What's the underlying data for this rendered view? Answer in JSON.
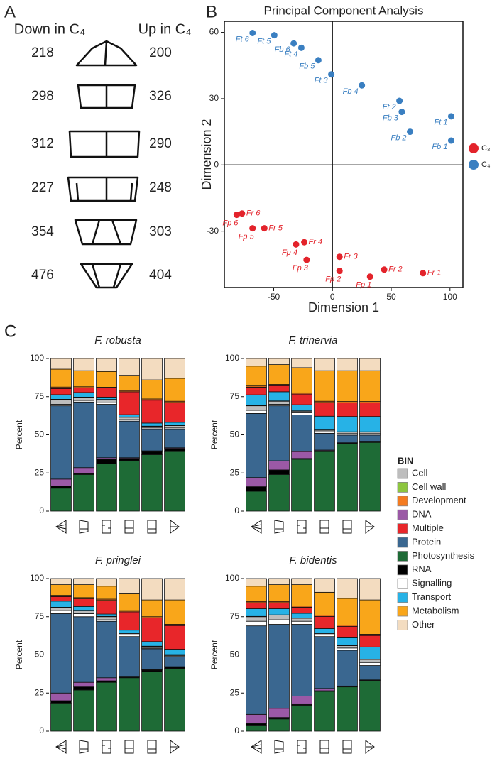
{
  "panel_labels": [
    "A",
    "B",
    "C"
  ],
  "panel_a": {
    "down_title": "Down in C₄",
    "up_title": "Up in C₄",
    "rows": [
      {
        "down": 218,
        "up": 200
      },
      {
        "down": 298,
        "up": 326
      },
      {
        "down": 312,
        "up": 290
      },
      {
        "down": 227,
        "up": 248
      },
      {
        "down": 354,
        "up": 303
      },
      {
        "down": 476,
        "up": 404
      }
    ]
  },
  "chart_data": [
    {
      "type": "scatter",
      "title": "Principal Component Analysis",
      "xlabel": "Dimension 1",
      "ylabel": "Dimension 2",
      "xlim": [
        -92,
        111
      ],
      "ylim": [
        -55.5,
        65
      ],
      "xticks": [
        -50,
        0,
        50,
        100
      ],
      "yticks": [
        -30,
        0,
        30,
        60
      ],
      "zero_lines": true,
      "legend": "right",
      "series": [
        {
          "name": "C₃",
          "color": "#e3232b",
          "labels": [
            "Fr 1",
            "Fr 2",
            "Fr 3",
            "Fr 4",
            "Fr 5",
            "Fr 6",
            "Fp 1",
            "Fp 2",
            "Fp 3",
            "Fp 4",
            "Fp 5",
            "Fp 6"
          ],
          "x": [
            77,
            44,
            6,
            -24,
            -58,
            -77,
            32,
            6,
            -22,
            -31,
            -68,
            -81.5
          ],
          "y": [
            -49,
            -47.4,
            -41.6,
            -35,
            -28.7,
            -22,
            -50.6,
            -48,
            -43,
            -36,
            -28.7,
            -22.6
          ]
        },
        {
          "name": "C₄",
          "color": "#3a7fc1",
          "labels": [
            "Ft 1",
            "Ft 2",
            "Ft 3",
            "Ft 4",
            "Ft 5",
            "Ft 6",
            "Fb 1",
            "Fb 2",
            "Fb 3",
            "Fb 4",
            "Fb 5",
            "Fb 6"
          ],
          "x": [
            101,
            57,
            -1,
            -26.5,
            -49.5,
            -68,
            101,
            66,
            59,
            25,
            -12,
            -33
          ],
          "y": [
            22,
            29,
            41,
            53,
            58.7,
            59.7,
            11,
            15,
            24,
            36,
            47.4,
            55
          ]
        }
      ]
    },
    {
      "type": "bar",
      "stacked": true,
      "title": "F. robusta",
      "ylabel": "Percent",
      "categories": [
        null,
        null,
        null,
        null,
        null,
        null
      ],
      "ylim": [
        0,
        100
      ],
      "yticks": [
        0,
        25,
        50,
        75,
        100
      ],
      "legend": "right",
      "legend_title": "BIN",
      "stack_order": [
        "Photosynthesis",
        "RNA",
        "DNA",
        "Protein",
        "Signalling",
        "Cell",
        "Cell wall",
        "Transport",
        "Multiple",
        "Development",
        "Metabolism",
        "Other"
      ],
      "series": [
        {
          "name": "Cell",
          "color": "#bdbdbd",
          "values": [
            3,
            2,
            2,
            1.5,
            1,
            1.5
          ]
        },
        {
          "name": "Cell wall",
          "color": "#8dc63f",
          "values": [
            0.3,
            0.2,
            0.2,
            0.2,
            0.2,
            0.2
          ]
        },
        {
          "name": "Development",
          "color": "#f47b20",
          "values": [
            1,
            0.8,
            0.5,
            0.8,
            0.8,
            0.8
          ]
        },
        {
          "name": "DNA",
          "color": "#9b59a6",
          "values": [
            4.5,
            4,
            1,
            0.5,
            0.5,
            0.5
          ]
        },
        {
          "name": "Multiple",
          "color": "#e8262a",
          "values": [
            4,
            3,
            6,
            15,
            15,
            13
          ]
        },
        {
          "name": "Protein",
          "color": "#3a6790",
          "values": [
            48,
            43,
            35,
            24,
            14,
            12
          ]
        },
        {
          "name": "Photosynthesis",
          "color": "#1e6b36",
          "values": [
            15,
            24,
            31,
            33,
            37,
            39
          ]
        },
        {
          "name": "RNA",
          "color": "#000000",
          "values": [
            1.5,
            0.5,
            3,
            1.5,
            2,
            2
          ]
        },
        {
          "name": "Signalling",
          "color": "#ffffff",
          "values": [
            1,
            1,
            1,
            1,
            1,
            1
          ]
        },
        {
          "name": "Transport",
          "color": "#27b2e6",
          "values": [
            3,
            3,
            1.5,
            1.5,
            2,
            2
          ]
        },
        {
          "name": "Metabolism",
          "color": "#f9a61a",
          "values": [
            11.7,
            10.5,
            10.3,
            10,
            12.5,
            15
          ]
        },
        {
          "name": "Other",
          "color": "#f3dcc0",
          "values": [
            7,
            8,
            8.5,
            11,
            14,
            13
          ]
        }
      ]
    },
    {
      "type": "bar",
      "stacked": true,
      "title": "F. trinervia",
      "ylabel": "Percent",
      "categories": [
        null,
        null,
        null,
        null,
        null,
        null
      ],
      "ylim": [
        0,
        100
      ],
      "yticks": [
        0,
        25,
        50,
        75,
        100
      ],
      "stack_order": [
        "Photosynthesis",
        "RNA",
        "DNA",
        "Protein",
        "Signalling",
        "Cell",
        "Cell wall",
        "Transport",
        "Multiple",
        "Development",
        "Metabolism",
        "Other"
      ],
      "series": [
        {
          "name": "Cell",
          "color": "#bdbdbd",
          "values": [
            3,
            2,
            1,
            1,
            1,
            1
          ]
        },
        {
          "name": "Cell wall",
          "color": "#8dc63f",
          "values": [
            0.2,
            0.2,
            0.2,
            0.2,
            0.2,
            0.2
          ]
        },
        {
          "name": "Development",
          "color": "#f47b20",
          "values": [
            0.8,
            0.8,
            0.8,
            0.8,
            0.8,
            0.8
          ]
        },
        {
          "name": "DNA",
          "color": "#9b59a6",
          "values": [
            6,
            6,
            4.5,
            0.5,
            0.3,
            0.3
          ]
        },
        {
          "name": "Multiple",
          "color": "#e8262a",
          "values": [
            5,
            4,
            7,
            9,
            9,
            9
          ]
        },
        {
          "name": "Protein",
          "color": "#3a6790",
          "values": [
            42,
            36,
            24,
            11,
            5,
            4
          ]
        },
        {
          "name": "Photosynthesis",
          "color": "#1e6b36",
          "values": [
            13,
            24,
            34,
            39,
            44,
            45
          ]
        },
        {
          "name": "RNA",
          "color": "#000000",
          "values": [
            3,
            3,
            0.5,
            0.5,
            0.5,
            0.5
          ]
        },
        {
          "name": "Signalling",
          "color": "#ffffff",
          "values": [
            2,
            1,
            1.5,
            1,
            1,
            1
          ]
        },
        {
          "name": "Transport",
          "color": "#27b2e6",
          "values": [
            7,
            6,
            4,
            9,
            10,
            10
          ]
        },
        {
          "name": "Metabolism",
          "color": "#f9a61a",
          "values": [
            13,
            13,
            16.5,
            20,
            20.2,
            20.2
          ]
        },
        {
          "name": "Other",
          "color": "#f3dcc0",
          "values": [
            5,
            4,
            6,
            8,
            8,
            8
          ]
        }
      ]
    },
    {
      "type": "bar",
      "stacked": true,
      "title": "F. pringlei",
      "ylabel": "Percent",
      "categories": [
        null,
        null,
        null,
        null,
        null,
        null
      ],
      "ylim": [
        0,
        100
      ],
      "yticks": [
        0,
        25,
        50,
        75,
        100
      ],
      "stack_order": [
        "Photosynthesis",
        "RNA",
        "DNA",
        "Protein",
        "Signalling",
        "Cell",
        "Cell wall",
        "Transport",
        "Multiple",
        "Development",
        "Metabolism",
        "Other"
      ],
      "series": [
        {
          "name": "Cell",
          "color": "#bdbdbd",
          "values": [
            2,
            2,
            2,
            1,
            1,
            0.5
          ]
        },
        {
          "name": "Cell wall",
          "color": "#8dc63f",
          "values": [
            0.2,
            0.2,
            0.2,
            0.2,
            0.2,
            0.2
          ]
        },
        {
          "name": "Development",
          "color": "#f47b20",
          "values": [
            0.8,
            0.8,
            0.8,
            0.8,
            0.8,
            0.8
          ]
        },
        {
          "name": "DNA",
          "color": "#9b59a6",
          "values": [
            5,
            3,
            2,
            0.5,
            0.3,
            0.3
          ]
        },
        {
          "name": "Multiple",
          "color": "#e8262a",
          "values": [
            3,
            5,
            9,
            12,
            15.5,
            15.5
          ]
        },
        {
          "name": "Protein",
          "color": "#3a6790",
          "values": [
            52,
            43,
            37,
            26,
            13.7,
            6.7
          ]
        },
        {
          "name": "Photosynthesis",
          "color": "#1e6b36",
          "values": [
            18,
            27,
            32,
            35,
            39,
            41
          ]
        },
        {
          "name": "RNA",
          "color": "#000000",
          "values": [
            2,
            2,
            1,
            0.5,
            1,
            1
          ]
        },
        {
          "name": "Signalling",
          "color": "#ffffff",
          "values": [
            2,
            2,
            1,
            1,
            0.5,
            0.5
          ]
        },
        {
          "name": "Transport",
          "color": "#27b2e6",
          "values": [
            4,
            2.5,
            1.5,
            2,
            3,
            3.5
          ]
        },
        {
          "name": "Metabolism",
          "color": "#f9a61a",
          "values": [
            7,
            8.5,
            8.5,
            11,
            11,
            16
          ]
        },
        {
          "name": "Other",
          "color": "#f3dcc0",
          "values": [
            4,
            4,
            5,
            10,
            14,
            14
          ]
        }
      ]
    },
    {
      "type": "bar",
      "stacked": true,
      "title": "F. bidentis",
      "ylabel": "Percent",
      "categories": [
        null,
        null,
        null,
        null,
        null,
        null
      ],
      "ylim": [
        0,
        100
      ],
      "yticks": [
        0,
        25,
        50,
        75,
        100
      ],
      "stack_order": [
        "Photosynthesis",
        "RNA",
        "DNA",
        "Protein",
        "Signalling",
        "Cell",
        "Cell wall",
        "Transport",
        "Multiple",
        "Development",
        "Metabolism",
        "Other"
      ],
      "series": [
        {
          "name": "Cell",
          "color": "#bdbdbd",
          "values": [
            3,
            3,
            2,
            1,
            1.5,
            2
          ]
        },
        {
          "name": "Cell wall",
          "color": "#8dc63f",
          "values": [
            0.2,
            0.2,
            0.2,
            0.2,
            0.2,
            0.2
          ]
        },
        {
          "name": "Development",
          "color": "#f47b20",
          "values": [
            0.8,
            0.8,
            0.8,
            0.8,
            0.8,
            0.8
          ]
        },
        {
          "name": "DNA",
          "color": "#9b59a6",
          "values": [
            6,
            6,
            5.5,
            1.5,
            0.3,
            0.3
          ]
        },
        {
          "name": "Multiple",
          "color": "#e8262a",
          "values": [
            4,
            4,
            4,
            8,
            7.5,
            7.5
          ]
        },
        {
          "name": "Protein",
          "color": "#3a6790",
          "values": [
            58,
            55,
            47,
            34,
            23.4,
            9.4
          ]
        },
        {
          "name": "Photosynthesis",
          "color": "#1e6b36",
          "values": [
            4,
            8,
            17,
            26,
            29,
            33
          ]
        },
        {
          "name": "RNA",
          "color": "#000000",
          "values": [
            1,
            1,
            0.5,
            0.5,
            0.3,
            0.3
          ]
        },
        {
          "name": "Signalling",
          "color": "#ffffff",
          "values": [
            3,
            3,
            2,
            1,
            1.5,
            2
          ]
        },
        {
          "name": "Transport",
          "color": "#27b2e6",
          "values": [
            5,
            4,
            3,
            3,
            5,
            8
          ]
        },
        {
          "name": "Metabolism",
          "color": "#f9a61a",
          "values": [
            10,
            11,
            14,
            15,
            17.5,
            22.5
          ]
        },
        {
          "name": "Other",
          "color": "#f3dcc0",
          "values": [
            5,
            4,
            4,
            9,
            13,
            14
          ]
        }
      ]
    }
  ]
}
